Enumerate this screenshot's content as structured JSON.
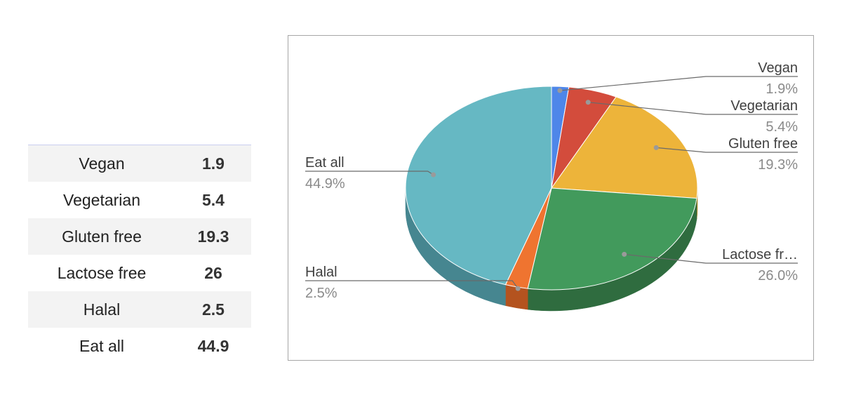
{
  "table": {
    "rows": [
      {
        "label": "Vegan",
        "value": "1.9"
      },
      {
        "label": "Vegetarian",
        "value": "5.4"
      },
      {
        "label": "Gluten free",
        "value": "19.3"
      },
      {
        "label": "Lactose free",
        "value": "26"
      },
      {
        "label": "Halal",
        "value": "2.5"
      },
      {
        "label": "Eat all",
        "value": "44.9"
      }
    ]
  },
  "chart_data": {
    "type": "pie",
    "style": "3d",
    "title": "",
    "categories": [
      "Vegan",
      "Vegetarian",
      "Gluten free",
      "Lactose free",
      "Halal",
      "Eat all"
    ],
    "values": [
      1.9,
      5.4,
      19.3,
      26,
      2.5,
      44.9
    ],
    "colors": [
      "#4e86e9",
      "#d34c3c",
      "#edb43a",
      "#429a5c",
      "#ef7430",
      "#66b8c3"
    ],
    "side_colors": [
      "#3560b0",
      "#9c3329",
      "#b6871f",
      "#2f6c3f",
      "#b4531f",
      "#468690"
    ],
    "slice_labels": [
      {
        "name": "Vegan",
        "percent": "1.9%"
      },
      {
        "name": "Vegetarian",
        "percent": "5.4%"
      },
      {
        "name": "Gluten free",
        "percent": "19.3%"
      },
      {
        "name": "Lactose fr…",
        "percent": "26.0%"
      },
      {
        "name": "Halal",
        "percent": "2.5%"
      },
      {
        "name": "Eat all",
        "percent": "44.9%"
      }
    ],
    "legend": "none"
  }
}
